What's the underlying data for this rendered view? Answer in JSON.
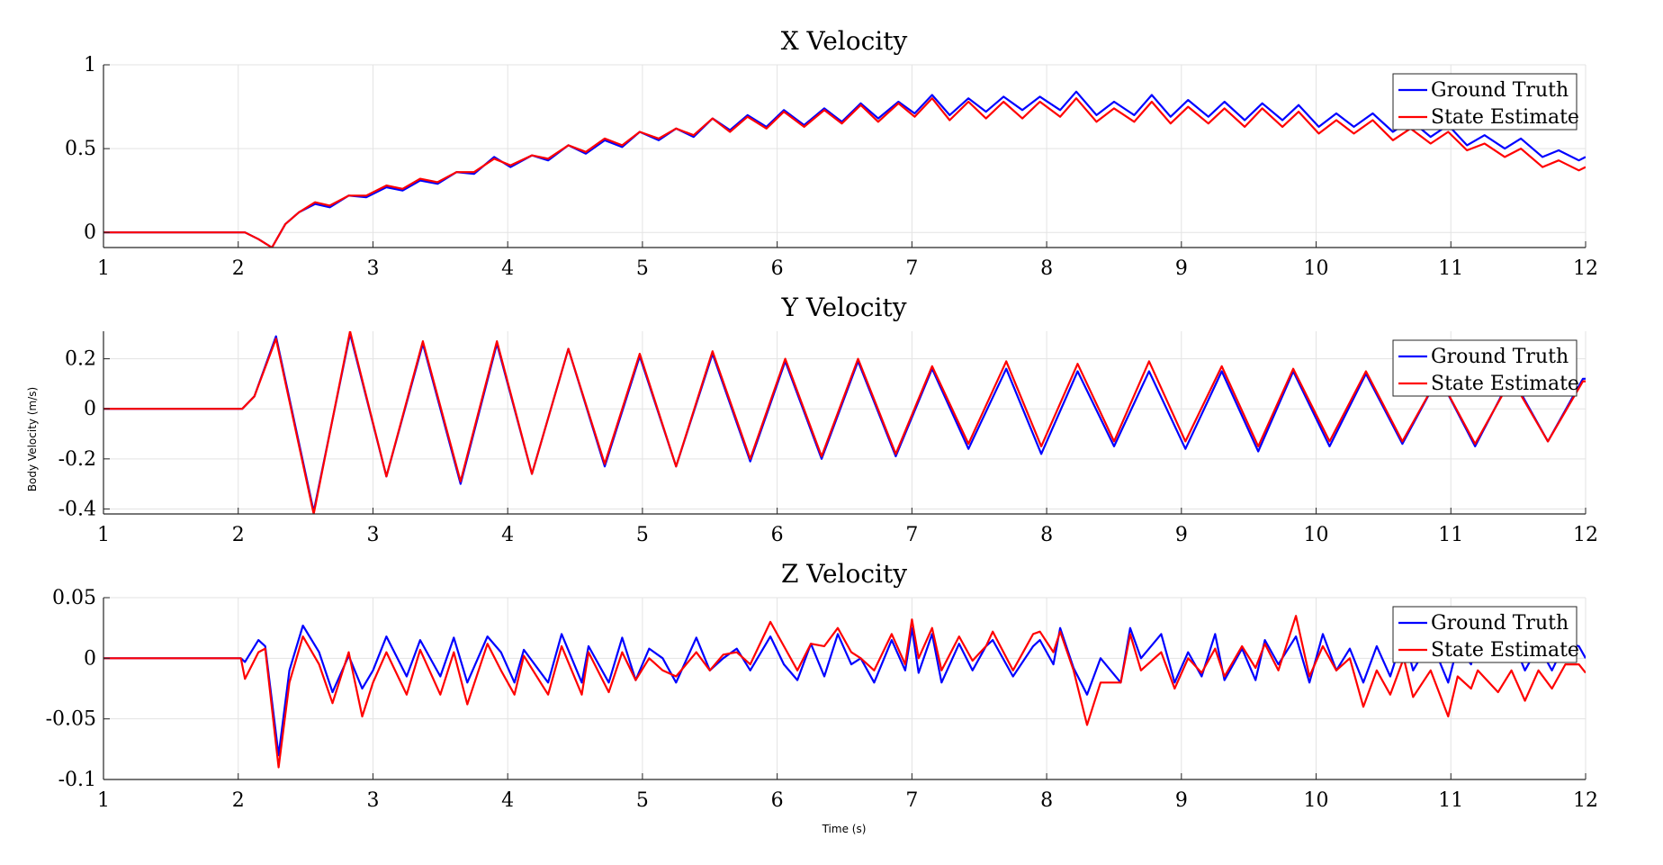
{
  "figure": {
    "ylabel": "Body Velocity (m/s)",
    "xlabel": "Time (s)"
  },
  "colors": {
    "ground_truth": "#0000ff",
    "state_estimate": "#ff0000",
    "grid": "#e3e3e3",
    "axis": "#262626"
  },
  "chart_data": [
    {
      "type": "line",
      "title": "X Velocity",
      "xlim": [
        1,
        12
      ],
      "ylim": [
        -0.09,
        1
      ],
      "xticks": [
        1,
        2,
        3,
        4,
        5,
        6,
        7,
        8,
        9,
        10,
        11,
        12
      ],
      "xtick_labels": [
        "1",
        "2",
        "3",
        "4",
        "5",
        "6",
        "7",
        "8",
        "9",
        "10",
        "11",
        "12"
      ],
      "yticks": [
        0,
        0.5,
        1
      ],
      "ytick_labels": [
        "0",
        "0.5",
        "1"
      ],
      "grid": true,
      "legend": "top-right",
      "series": [
        {
          "name": "Ground Truth",
          "color": "#0000ff",
          "x": [
            1,
            2.05,
            2.15,
            2.25,
            2.35,
            2.45,
            2.57,
            2.68,
            2.82,
            2.95,
            3.1,
            3.22,
            3.35,
            3.48,
            3.62,
            3.75,
            3.9,
            4.02,
            4.18,
            4.3,
            4.45,
            4.58,
            4.72,
            4.85,
            4.98,
            5.12,
            5.25,
            5.38,
            5.52,
            5.65,
            5.78,
            5.92,
            6.05,
            6.2,
            6.35,
            6.48,
            6.62,
            6.75,
            6.9,
            7.02,
            7.15,
            7.28,
            7.42,
            7.55,
            7.68,
            7.82,
            7.95,
            8.1,
            8.22,
            8.37,
            8.5,
            8.65,
            8.78,
            8.92,
            9.05,
            9.2,
            9.32,
            9.47,
            9.6,
            9.75,
            9.87,
            10.02,
            10.15,
            10.28,
            10.42,
            10.57,
            10.7,
            10.85,
            10.98,
            11.12,
            11.25,
            11.4,
            11.52,
            11.68,
            11.8,
            11.95,
            12
          ],
          "y": [
            0,
            0,
            -0.04,
            -0.09,
            0.05,
            0.12,
            0.17,
            0.15,
            0.22,
            0.21,
            0.27,
            0.25,
            0.31,
            0.29,
            0.36,
            0.35,
            0.45,
            0.39,
            0.46,
            0.43,
            0.52,
            0.47,
            0.55,
            0.51,
            0.6,
            0.55,
            0.62,
            0.57,
            0.68,
            0.61,
            0.7,
            0.63,
            0.73,
            0.64,
            0.74,
            0.66,
            0.77,
            0.68,
            0.78,
            0.71,
            0.82,
            0.7,
            0.8,
            0.72,
            0.81,
            0.73,
            0.81,
            0.73,
            0.84,
            0.7,
            0.78,
            0.7,
            0.82,
            0.69,
            0.79,
            0.69,
            0.78,
            0.67,
            0.77,
            0.67,
            0.76,
            0.63,
            0.71,
            0.63,
            0.71,
            0.6,
            0.67,
            0.57,
            0.64,
            0.52,
            0.58,
            0.5,
            0.56,
            0.45,
            0.49,
            0.43,
            0.45
          ]
        },
        {
          "name": "State Estimate",
          "color": "#ff0000",
          "x": [
            1,
            2.05,
            2.15,
            2.25,
            2.35,
            2.45,
            2.57,
            2.68,
            2.82,
            2.95,
            3.1,
            3.22,
            3.35,
            3.48,
            3.62,
            3.75,
            3.9,
            4.02,
            4.18,
            4.3,
            4.45,
            4.58,
            4.72,
            4.85,
            4.98,
            5.12,
            5.25,
            5.38,
            5.52,
            5.65,
            5.78,
            5.92,
            6.05,
            6.2,
            6.35,
            6.48,
            6.62,
            6.75,
            6.9,
            7.02,
            7.15,
            7.28,
            7.42,
            7.55,
            7.68,
            7.82,
            7.95,
            8.1,
            8.22,
            8.37,
            8.5,
            8.65,
            8.78,
            8.92,
            9.05,
            9.2,
            9.32,
            9.47,
            9.6,
            9.75,
            9.87,
            10.02,
            10.15,
            10.28,
            10.42,
            10.57,
            10.7,
            10.85,
            10.98,
            11.12,
            11.25,
            11.4,
            11.52,
            11.68,
            11.8,
            11.95,
            12
          ],
          "y": [
            0,
            0,
            -0.04,
            -0.09,
            0.05,
            0.12,
            0.18,
            0.16,
            0.22,
            0.22,
            0.28,
            0.26,
            0.32,
            0.3,
            0.36,
            0.36,
            0.44,
            0.4,
            0.46,
            0.44,
            0.52,
            0.48,
            0.56,
            0.52,
            0.6,
            0.56,
            0.62,
            0.58,
            0.68,
            0.6,
            0.69,
            0.62,
            0.72,
            0.63,
            0.73,
            0.65,
            0.76,
            0.66,
            0.77,
            0.69,
            0.8,
            0.67,
            0.78,
            0.68,
            0.78,
            0.68,
            0.78,
            0.69,
            0.8,
            0.66,
            0.74,
            0.66,
            0.78,
            0.65,
            0.75,
            0.65,
            0.74,
            0.63,
            0.74,
            0.63,
            0.72,
            0.59,
            0.67,
            0.59,
            0.67,
            0.55,
            0.62,
            0.53,
            0.6,
            0.49,
            0.53,
            0.45,
            0.5,
            0.39,
            0.43,
            0.37,
            0.39
          ]
        }
      ]
    },
    {
      "type": "line",
      "title": "Y Velocity",
      "xlim": [
        1,
        12
      ],
      "ylim": [
        -0.42,
        0.31
      ],
      "xticks": [
        1,
        2,
        3,
        4,
        5,
        6,
        7,
        8,
        9,
        10,
        11,
        12
      ],
      "xtick_labels": [
        "1",
        "2",
        "3",
        "4",
        "5",
        "6",
        "7",
        "8",
        "9",
        "10",
        "11",
        "12"
      ],
      "yticks": [
        -0.4,
        -0.2,
        0,
        0.2
      ],
      "ytick_labels": [
        "-0.4",
        "-0.2",
        "0",
        "0.2"
      ],
      "grid": true,
      "legend": "top-right",
      "series": [
        {
          "name": "Ground Truth",
          "color": "#0000ff",
          "x": [
            1,
            2.03,
            2.12,
            2.28,
            2.56,
            2.83,
            3.1,
            3.37,
            3.65,
            3.92,
            4.18,
            4.45,
            4.72,
            4.98,
            5.25,
            5.52,
            5.8,
            6.06,
            6.33,
            6.6,
            6.88,
            7.15,
            7.42,
            7.7,
            7.96,
            8.23,
            8.5,
            8.76,
            9.03,
            9.3,
            9.57,
            9.83,
            10.1,
            10.37,
            10.64,
            10.91,
            11.18,
            11.45,
            11.72,
            11.98,
            12
          ],
          "y": [
            0,
            0,
            0.05,
            0.29,
            -0.41,
            0.3,
            -0.27,
            0.26,
            -0.3,
            0.26,
            -0.26,
            0.24,
            -0.23,
            0.21,
            -0.23,
            0.22,
            -0.21,
            0.19,
            -0.2,
            0.19,
            -0.19,
            0.16,
            -0.16,
            0.16,
            -0.18,
            0.15,
            -0.15,
            0.15,
            -0.16,
            0.15,
            -0.17,
            0.15,
            -0.15,
            0.14,
            -0.14,
            0.13,
            -0.15,
            0.13,
            -0.13,
            0.12,
            0.12
          ]
        },
        {
          "name": "State Estimate",
          "color": "#ff0000",
          "x": [
            1,
            2.03,
            2.12,
            2.28,
            2.56,
            2.83,
            3.1,
            3.37,
            3.65,
            3.92,
            4.18,
            4.45,
            4.72,
            4.98,
            5.25,
            5.52,
            5.8,
            6.06,
            6.33,
            6.6,
            6.88,
            7.15,
            7.42,
            7.7,
            7.96,
            8.23,
            8.5,
            8.76,
            9.03,
            9.3,
            9.57,
            9.83,
            10.1,
            10.37,
            10.64,
            10.91,
            11.18,
            11.45,
            11.72,
            11.98,
            12
          ],
          "y": [
            0,
            0,
            0.05,
            0.28,
            -0.42,
            0.31,
            -0.27,
            0.27,
            -0.29,
            0.27,
            -0.26,
            0.24,
            -0.22,
            0.22,
            -0.23,
            0.23,
            -0.2,
            0.2,
            -0.19,
            0.2,
            -0.18,
            0.17,
            -0.14,
            0.19,
            -0.15,
            0.18,
            -0.13,
            0.19,
            -0.13,
            0.17,
            -0.15,
            0.16,
            -0.13,
            0.15,
            -0.13,
            0.13,
            -0.14,
            0.12,
            -0.13,
            0.11,
            0.11
          ]
        }
      ]
    },
    {
      "type": "line",
      "title": "Z Velocity",
      "xlim": [
        1,
        12
      ],
      "ylim": [
        -0.1,
        0.05
      ],
      "xticks": [
        1,
        2,
        3,
        4,
        5,
        6,
        7,
        8,
        9,
        10,
        11,
        12
      ],
      "xtick_labels": [
        "1",
        "2",
        "3",
        "4",
        "5",
        "6",
        "7",
        "8",
        "9",
        "10",
        "11",
        "12"
      ],
      "yticks": [
        -0.1,
        -0.05,
        0,
        0.05
      ],
      "ytick_labels": [
        "-0.1",
        "-0.05",
        "0",
        "0.05"
      ],
      "grid": true,
      "legend": "top-right",
      "series": [
        {
          "name": "Ground Truth",
          "color": "#0000ff",
          "x": [
            1,
            2.02,
            2.05,
            2.15,
            2.2,
            2.3,
            2.38,
            2.48,
            2.6,
            2.7,
            2.82,
            2.92,
            3.0,
            3.1,
            3.25,
            3.35,
            3.5,
            3.6,
            3.7,
            3.85,
            3.95,
            4.05,
            4.12,
            4.3,
            4.4,
            4.55,
            4.6,
            4.75,
            4.85,
            4.95,
            5.05,
            5.15,
            5.25,
            5.4,
            5.5,
            5.6,
            5.7,
            5.8,
            5.95,
            6.05,
            6.15,
            6.25,
            6.35,
            6.45,
            6.55,
            6.62,
            6.72,
            6.85,
            6.95,
            7.0,
            7.05,
            7.15,
            7.22,
            7.35,
            7.45,
            7.55,
            7.6,
            7.75,
            7.9,
            7.95,
            8.05,
            8.1,
            8.2,
            8.3,
            8.4,
            8.55,
            8.62,
            8.7,
            8.85,
            8.95,
            9.05,
            9.15,
            9.25,
            9.32,
            9.45,
            9.55,
            9.62,
            9.72,
            9.85,
            9.95,
            10.05,
            10.15,
            10.25,
            10.35,
            10.45,
            10.55,
            10.65,
            10.72,
            10.85,
            10.98,
            11.05,
            11.15,
            11.2,
            11.35,
            11.45,
            11.55,
            11.65,
            11.75,
            11.85,
            11.95,
            12
          ],
          "y": [
            0,
            0,
            -0.003,
            0.015,
            0.01,
            -0.08,
            -0.01,
            0.027,
            0.005,
            -0.028,
            0.002,
            -0.025,
            -0.01,
            0.018,
            -0.015,
            0.015,
            -0.015,
            0.017,
            -0.02,
            0.018,
            0.005,
            -0.02,
            0.007,
            -0.02,
            0.02,
            -0.02,
            0.01,
            -0.02,
            0.017,
            -0.018,
            0.008,
            0.0,
            -0.02,
            0.017,
            -0.01,
            0.0,
            0.008,
            -0.01,
            0.018,
            -0.005,
            -0.018,
            0.012,
            -0.015,
            0.02,
            -0.005,
            0.0,
            -0.02,
            0.015,
            -0.01,
            0.025,
            -0.012,
            0.02,
            -0.02,
            0.012,
            -0.01,
            0.01,
            0.015,
            -0.015,
            0.01,
            0.015,
            -0.005,
            0.025,
            -0.008,
            -0.03,
            0.0,
            -0.02,
            0.025,
            0.0,
            0.02,
            -0.02,
            0.005,
            -0.015,
            0.02,
            -0.018,
            0.008,
            -0.018,
            0.015,
            -0.005,
            0.018,
            -0.02,
            0.02,
            -0.01,
            0.008,
            -0.02,
            0.01,
            -0.015,
            0.02,
            -0.01,
            0.015,
            -0.02,
            0.01,
            -0.005,
            0.017,
            0.0,
            0.017,
            -0.01,
            0.01,
            -0.01,
            0.013,
            0.01,
            0.0
          ]
        },
        {
          "name": "State Estimate",
          "color": "#ff0000",
          "x": [
            1,
            2.02,
            2.05,
            2.15,
            2.2,
            2.3,
            2.38,
            2.48,
            2.6,
            2.7,
            2.82,
            2.92,
            3.0,
            3.1,
            3.25,
            3.35,
            3.5,
            3.6,
            3.7,
            3.85,
            3.95,
            4.05,
            4.12,
            4.3,
            4.4,
            4.55,
            4.6,
            4.75,
            4.85,
            4.95,
            5.05,
            5.15,
            5.25,
            5.4,
            5.5,
            5.6,
            5.7,
            5.8,
            5.95,
            6.05,
            6.15,
            6.25,
            6.35,
            6.45,
            6.55,
            6.62,
            6.72,
            6.85,
            6.95,
            7.0,
            7.05,
            7.15,
            7.22,
            7.35,
            7.45,
            7.55,
            7.6,
            7.75,
            7.9,
            7.95,
            8.05,
            8.1,
            8.2,
            8.3,
            8.4,
            8.55,
            8.62,
            8.7,
            8.85,
            8.95,
            9.05,
            9.15,
            9.25,
            9.32,
            9.45,
            9.55,
            9.62,
            9.72,
            9.85,
            9.95,
            10.05,
            10.15,
            10.25,
            10.35,
            10.45,
            10.55,
            10.65,
            10.72,
            10.85,
            10.98,
            11.05,
            11.15,
            11.2,
            11.35,
            11.45,
            11.55,
            11.65,
            11.75,
            11.85,
            11.95,
            12
          ],
          "y": [
            0,
            0,
            -0.017,
            0.005,
            0.008,
            -0.09,
            -0.02,
            0.018,
            -0.005,
            -0.037,
            0.005,
            -0.048,
            -0.02,
            0.005,
            -0.03,
            0.007,
            -0.03,
            0.005,
            -0.038,
            0.012,
            -0.01,
            -0.03,
            0.002,
            -0.03,
            0.01,
            -0.03,
            0.005,
            -0.028,
            0.005,
            -0.018,
            0.0,
            -0.01,
            -0.015,
            0.005,
            -0.01,
            0.003,
            0.005,
            -0.005,
            0.03,
            0.01,
            -0.01,
            0.012,
            0.01,
            0.025,
            0.005,
            0.0,
            -0.01,
            0.02,
            -0.005,
            0.032,
            0.0,
            0.025,
            -0.01,
            0.018,
            -0.002,
            0.01,
            0.022,
            -0.01,
            0.02,
            0.022,
            0.005,
            0.022,
            -0.01,
            -0.055,
            -0.02,
            -0.02,
            0.02,
            -0.01,
            0.005,
            -0.025,
            0.0,
            -0.012,
            0.008,
            -0.015,
            0.01,
            -0.008,
            0.012,
            -0.01,
            0.035,
            -0.015,
            0.01,
            -0.01,
            0.0,
            -0.04,
            -0.01,
            -0.03,
            0.0,
            -0.032,
            -0.01,
            -0.048,
            -0.015,
            -0.025,
            -0.01,
            -0.028,
            -0.01,
            -0.035,
            -0.01,
            -0.025,
            -0.005,
            -0.005,
            -0.012
          ]
        }
      ]
    }
  ]
}
